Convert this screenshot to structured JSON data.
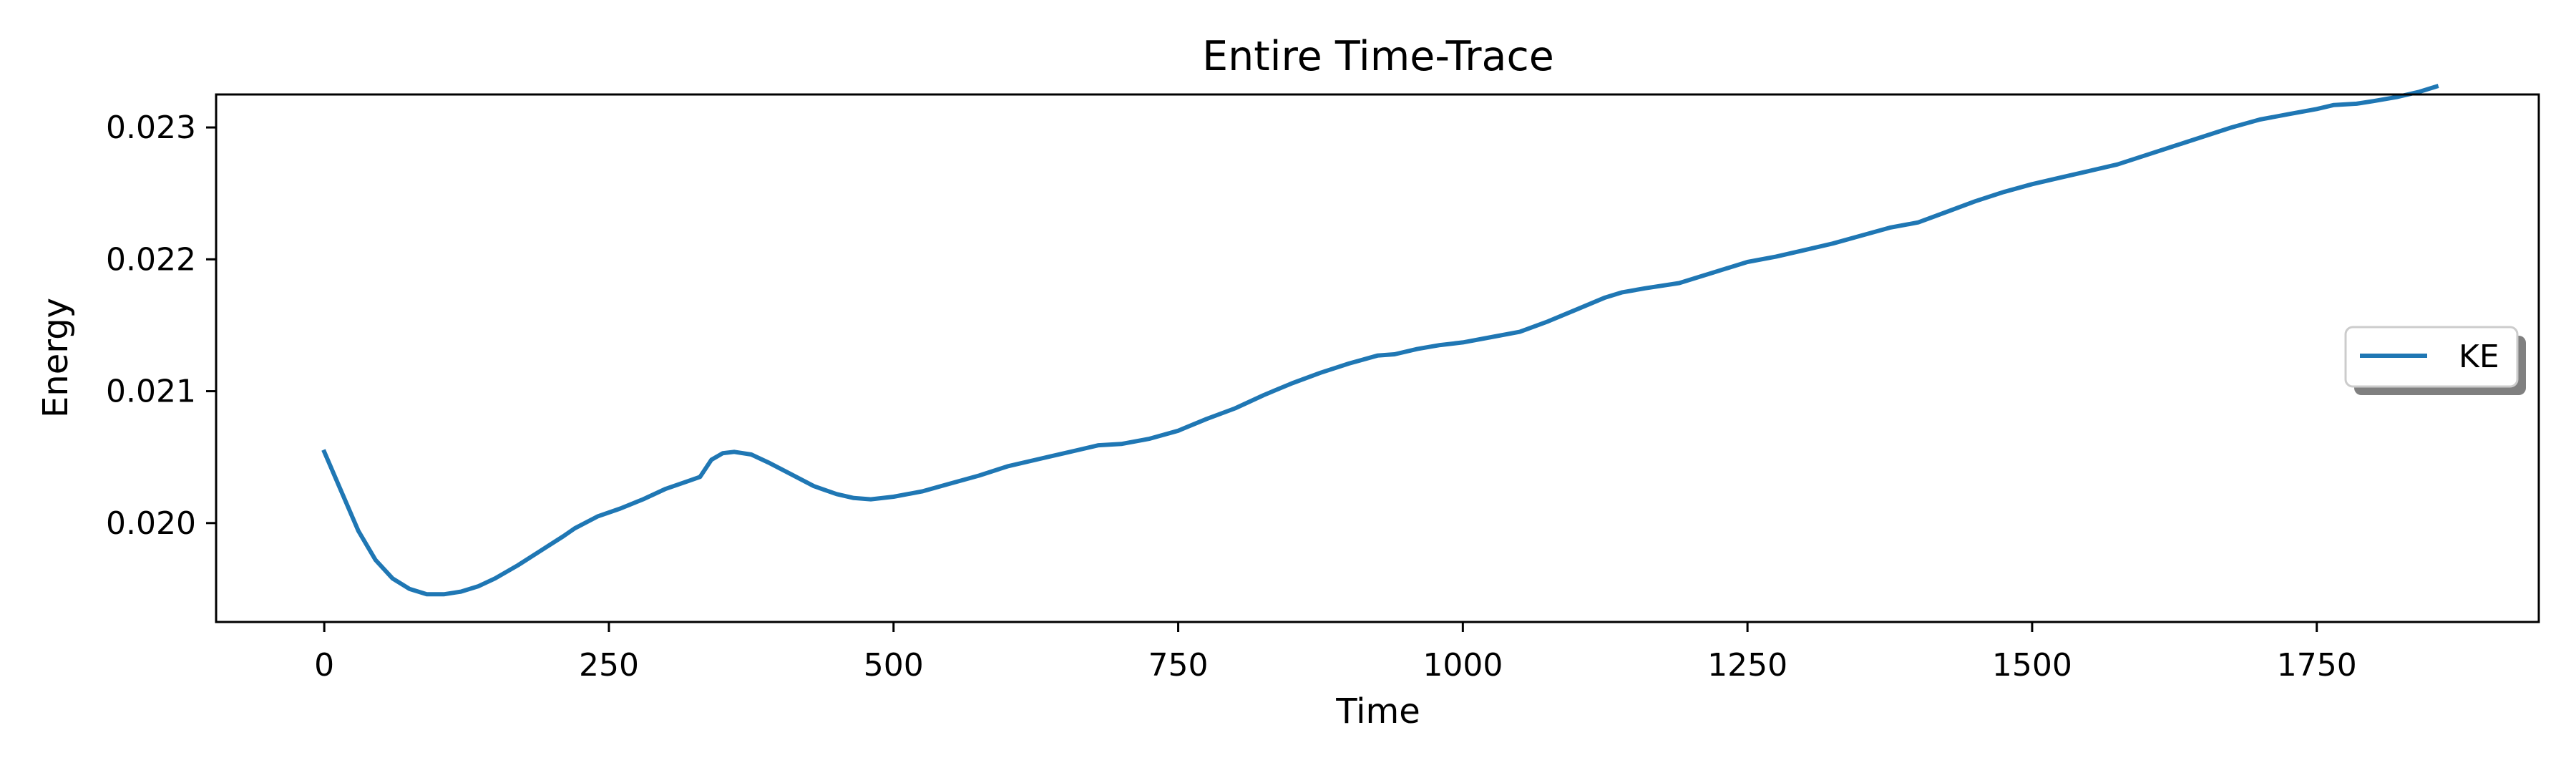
{
  "chart_data": {
    "type": "line",
    "title": "Entire Time-Trace",
    "xlabel": "Time",
    "ylabel": "Energy",
    "xlim": [
      -95,
      1945
    ],
    "ylim": [
      0.01925,
      0.02325
    ],
    "x_ticks": [
      0,
      250,
      500,
      750,
      1000,
      1250,
      1500,
      1750
    ],
    "y_ticks": [
      0.02,
      0.021,
      0.022,
      0.023
    ],
    "x_tick_labels": [
      "0",
      "250",
      "500",
      "750",
      "1000",
      "1250",
      "1500",
      "1750"
    ],
    "y_tick_labels": [
      "0.020",
      "0.021",
      "0.022",
      "0.023"
    ],
    "grid": false,
    "legend": {
      "position": "center-right",
      "entries": [
        "KE"
      ]
    },
    "colors": {
      "KE": "#1f77b4"
    },
    "series": [
      {
        "name": "KE",
        "x": [
          0,
          15,
          30,
          45,
          60,
          75,
          90,
          105,
          120,
          135,
          150,
          170,
          190,
          210,
          220,
          240,
          260,
          280,
          300,
          320,
          330,
          340,
          350,
          360,
          375,
          390,
          410,
          430,
          450,
          465,
          480,
          500,
          525,
          550,
          575,
          600,
          630,
          660,
          680,
          700,
          725,
          750,
          775,
          800,
          825,
          850,
          875,
          900,
          925,
          940,
          960,
          980,
          1000,
          1025,
          1050,
          1075,
          1100,
          1125,
          1140,
          1160,
          1190,
          1220,
          1250,
          1275,
          1300,
          1325,
          1350,
          1375,
          1400,
          1425,
          1450,
          1475,
          1500,
          1525,
          1550,
          1575,
          1600,
          1625,
          1650,
          1675,
          1700,
          1725,
          1750,
          1765,
          1785,
          1800,
          1820,
          1840,
          1855
        ],
        "y": [
          0.02054,
          0.02024,
          0.01994,
          0.01972,
          0.01958,
          0.0195,
          0.01946,
          0.01946,
          0.01948,
          0.01952,
          0.01958,
          0.01968,
          0.01979,
          0.0199,
          0.01996,
          0.02005,
          0.02011,
          0.02018,
          0.02026,
          0.02032,
          0.02035,
          0.02048,
          0.02053,
          0.02054,
          0.02052,
          0.02046,
          0.02037,
          0.02028,
          0.02022,
          0.02019,
          0.02018,
          0.0202,
          0.02024,
          0.0203,
          0.02036,
          0.02043,
          0.02049,
          0.02055,
          0.02059,
          0.0206,
          0.02064,
          0.0207,
          0.02079,
          0.02087,
          0.02097,
          0.02106,
          0.02114,
          0.02121,
          0.02127,
          0.02128,
          0.02132,
          0.02135,
          0.02137,
          0.02141,
          0.02145,
          0.02153,
          0.02162,
          0.02171,
          0.02175,
          0.02178,
          0.02182,
          0.0219,
          0.02198,
          0.02202,
          0.02207,
          0.02212,
          0.02218,
          0.02224,
          0.02228,
          0.02236,
          0.02244,
          0.02251,
          0.02257,
          0.02262,
          0.02267,
          0.02272,
          0.02279,
          0.02286,
          0.02293,
          0.023,
          0.02306,
          0.0231,
          0.02314,
          0.02317,
          0.02318,
          0.0232,
          0.02323,
          0.02327,
          0.02331
        ]
      }
    ]
  }
}
